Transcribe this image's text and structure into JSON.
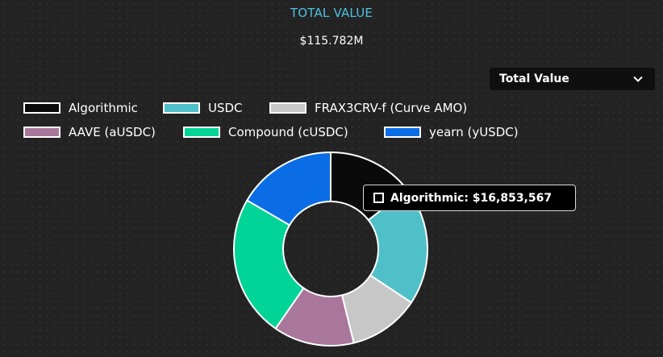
{
  "header": {
    "title": "TOTAL VALUE",
    "total": "$115.782M"
  },
  "selector": {
    "value": "Total Value",
    "icon": "chevron-down-icon"
  },
  "tooltip": {
    "text": "Algorithmic: $16,853,567",
    "swatch_color": "#000000"
  },
  "chart_data": {
    "type": "pie",
    "variant": "doughnut",
    "labels": [
      "Algorithmic",
      "USDC",
      "FRAX3CRV-f (Curve AMO)",
      "AAVE (aUSDC)",
      "Compound (cUSDC)",
      "yearn (yUSDC)"
    ],
    "values": [
      16853567,
      22900000,
      13700000,
      15600000,
      27500000,
      19228433
    ],
    "colors": [
      "#0a0a0a",
      "#4fc0c8",
      "#c7c7c7",
      "#a9769c",
      "#00d496",
      "#0a6de6"
    ],
    "legend": "top-left"
  }
}
